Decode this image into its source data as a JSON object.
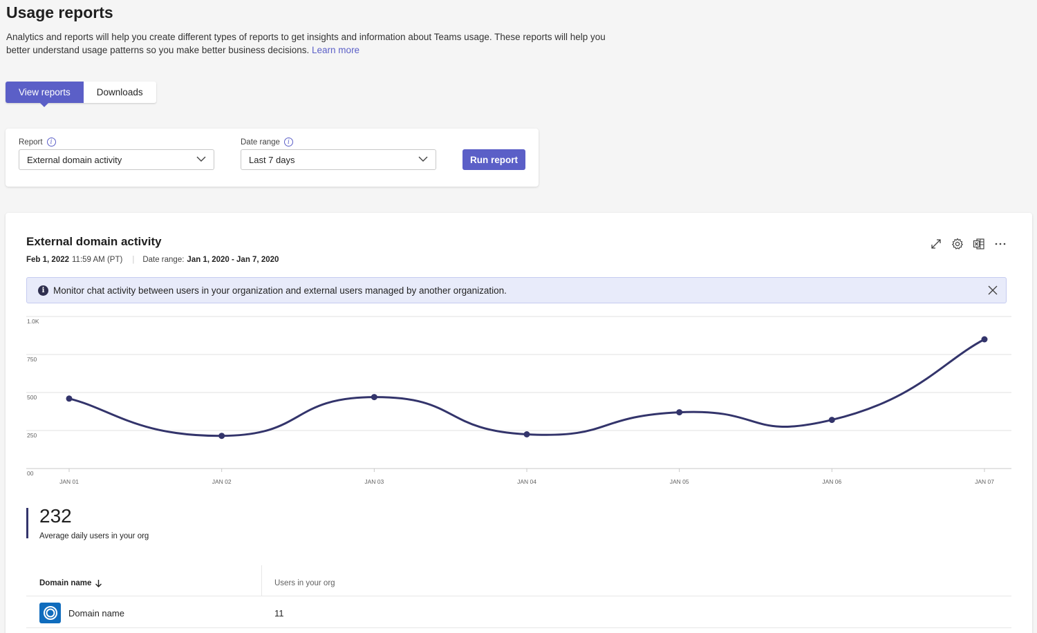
{
  "page": {
    "title": "Usage reports",
    "description": "Analytics and reports will help you create different types of reports to get insights and information about Teams usage. These reports will help you better understand usage patterns so you make better business decisions.",
    "learn_more": "Learn more"
  },
  "tabs": [
    {
      "label": "View reports",
      "active": true
    },
    {
      "label": "Downloads",
      "active": false
    }
  ],
  "filters": {
    "report_label": "Report",
    "report_value": "External domain activity",
    "date_label": "Date range",
    "date_value": "Last 7 days",
    "run_button": "Run report"
  },
  "report": {
    "title": "External domain activity",
    "run_date": "Feb 1, 2022",
    "run_time": "11:59 AM (PT)",
    "date_range_label": "Date range:",
    "date_range_value": "Jan 1, 2020 - Jan 7, 2020",
    "banner": "Monitor chat activity between users in your organization and external users managed by another organization.",
    "header_icons": [
      "expand-icon",
      "settings-icon",
      "excel-export-icon",
      "more-options-icon"
    ]
  },
  "chart_data": {
    "type": "line",
    "categories": [
      "JAN 01",
      "JAN 02",
      "JAN 03",
      "JAN 04",
      "JAN 05",
      "JAN 06",
      "JAN 07"
    ],
    "values": [
      460,
      215,
      470,
      225,
      370,
      320,
      850
    ],
    "y_ticks": [
      "00",
      "250",
      "500",
      "750",
      "1.0K"
    ],
    "ylim": [
      0,
      1000
    ],
    "grid": true,
    "line_color": "#33346b"
  },
  "kpi": {
    "value": "232",
    "label": "Average daily users in your org"
  },
  "table": {
    "headers": {
      "domain": "Domain name",
      "users": "Users in your org"
    },
    "rows": [
      {
        "domain": "Domain name",
        "users": "11"
      }
    ]
  },
  "colors": {
    "accent": "#5b5fc7",
    "chart_line": "#33346b",
    "banner_bg": "#e8ebfa"
  }
}
